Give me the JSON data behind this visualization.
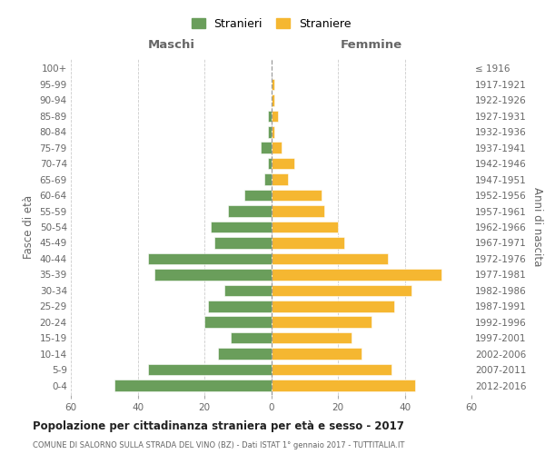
{
  "age_groups": [
    "100+",
    "95-99",
    "90-94",
    "85-89",
    "80-84",
    "75-79",
    "70-74",
    "65-69",
    "60-64",
    "55-59",
    "50-54",
    "45-49",
    "40-44",
    "35-39",
    "30-34",
    "25-29",
    "20-24",
    "15-19",
    "10-14",
    "5-9",
    "0-4"
  ],
  "birth_years": [
    "≤ 1916",
    "1917-1921",
    "1922-1926",
    "1927-1931",
    "1932-1936",
    "1937-1941",
    "1942-1946",
    "1947-1951",
    "1952-1956",
    "1957-1961",
    "1962-1966",
    "1967-1971",
    "1972-1976",
    "1977-1981",
    "1982-1986",
    "1987-1991",
    "1992-1996",
    "1997-2001",
    "2002-2006",
    "2007-2011",
    "2012-2016"
  ],
  "maschi": [
    0,
    0,
    0,
    1,
    1,
    3,
    1,
    2,
    8,
    13,
    18,
    17,
    37,
    35,
    14,
    19,
    20,
    12,
    16,
    37,
    47
  ],
  "femmine": [
    0,
    1,
    1,
    2,
    1,
    3,
    7,
    5,
    15,
    16,
    20,
    22,
    35,
    51,
    42,
    37,
    30,
    24,
    27,
    36,
    43
  ],
  "color_maschi": "#6a9e5b",
  "color_femmine": "#f5b731",
  "title": "Popolazione per cittadinanza straniera per età e sesso - 2017",
  "subtitle": "COMUNE DI SALORNO SULLA STRADA DEL VINO (BZ) - Dati ISTAT 1° gennaio 2017 - TUTTITALIA.IT",
  "xlabel_left": "Maschi",
  "xlabel_right": "Femmine",
  "ylabel_left": "Fasce di età",
  "ylabel_right": "Anni di nascita",
  "xlim": 60,
  "legend_stranieri": "Stranieri",
  "legend_straniere": "Straniere",
  "bg_color": "#ffffff",
  "grid_color": "#cccccc",
  "dashed_line_color": "#888888",
  "axis_label_color": "#666666",
  "tick_label_color": "#666666"
}
